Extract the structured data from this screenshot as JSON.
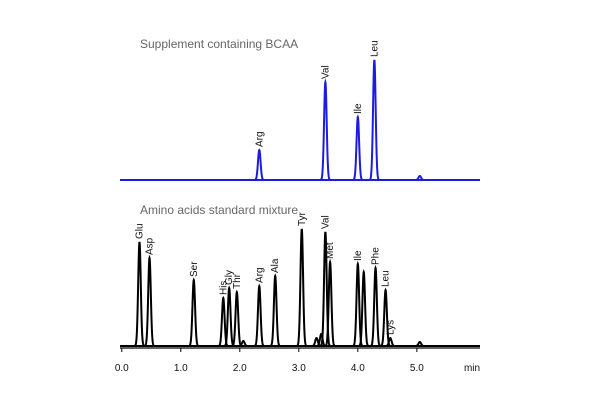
{
  "chart_data": {
    "type": "chromatogram",
    "xlim": [
      -0.03,
      6.07
    ],
    "xticks": [
      {
        "value": 0,
        "label": "0.0"
      },
      {
        "value": 1,
        "label": "1.0"
      },
      {
        "value": 2,
        "label": "2.0"
      },
      {
        "value": 3,
        "label": "3.0"
      },
      {
        "value": 4,
        "label": "4.0"
      },
      {
        "value": 5,
        "label": "5.0"
      }
    ],
    "x_unit": "min",
    "traces": [
      {
        "name": "Supplement containing BCAA",
        "color": "#1c1ce0",
        "x": [
          2.33,
          3.45,
          4.0,
          4.28,
          5.05
        ],
        "heights": [
          30,
          98,
          63,
          120,
          4
        ],
        "labels": [
          "Arg",
          "Val",
          "Ile",
          "Leu",
          null
        ]
      },
      {
        "name": "Amino acids standard mixture",
        "color": "#000000",
        "x": [
          0.3,
          0.47,
          1.22,
          1.72,
          1.82,
          1.95,
          2.06,
          2.33,
          2.6,
          3.05,
          3.3,
          3.38,
          3.45,
          3.53,
          4.0,
          4.1,
          4.3,
          4.47,
          4.55,
          5.05
        ],
        "heights": [
          104,
          88,
          66,
          48,
          58,
          54,
          5,
          60,
          70,
          117,
          8,
          12,
          114,
          84,
          82,
          74,
          78,
          56,
          8,
          4
        ],
        "labels": [
          "Glu",
          "Asp",
          "Ser",
          "His",
          "Gly",
          "Thr",
          null,
          "Arg",
          "Ala",
          "Tyr",
          null,
          null,
          "Val",
          "Met",
          "Ile",
          null,
          "Phe",
          "Leu",
          "Lys",
          null
        ]
      }
    ]
  }
}
